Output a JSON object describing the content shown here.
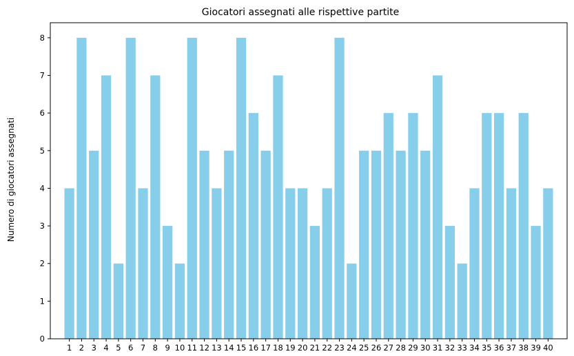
{
  "chart_data": {
    "type": "bar",
    "title": "Giocatori assegnati alle rispettive partite",
    "xlabel": "",
    "ylabel": "Numero di giocatori assegnati",
    "categories": [
      "1",
      "2",
      "3",
      "4",
      "5",
      "6",
      "7",
      "8",
      "9",
      "10",
      "11",
      "12",
      "13",
      "14",
      "15",
      "16",
      "17",
      "18",
      "19",
      "20",
      "21",
      "22",
      "23",
      "24",
      "25",
      "26",
      "27",
      "28",
      "29",
      "30",
      "31",
      "32",
      "33",
      "34",
      "35",
      "36",
      "37",
      "38",
      "39",
      "40"
    ],
    "values": [
      4,
      8,
      5,
      7,
      2,
      8,
      4,
      7,
      3,
      2,
      8,
      5,
      4,
      5,
      8,
      6,
      5,
      7,
      4,
      4,
      3,
      4,
      8,
      2,
      5,
      5,
      6,
      5,
      6,
      5,
      7,
      3,
      2,
      4,
      6,
      6,
      4,
      6,
      3,
      4
    ],
    "ylim": [
      0,
      8.4
    ],
    "yticks": [
      "0",
      "1",
      "2",
      "3",
      "4",
      "5",
      "6",
      "7",
      "8"
    ],
    "bar_color": "#87ceeb",
    "grid": false,
    "legend": "none"
  }
}
